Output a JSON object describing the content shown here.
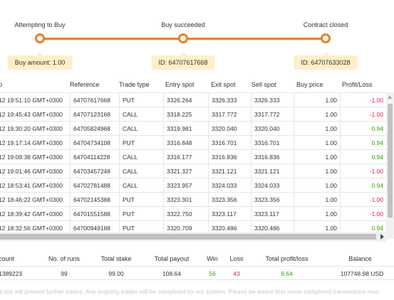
{
  "stepper": {
    "steps": [
      {
        "title": "Attempting to Buy",
        "bubble": "Buy amount: 1.00"
      },
      {
        "title": "Buy succeeded",
        "bubble": "ID: 64707617668"
      },
      {
        "title": "Contract closed",
        "bubble": "ID: 64707633028"
      }
    ],
    "accent_color": "#e98024",
    "bubble_color": "#fdefc8"
  },
  "transactions": {
    "headers": [
      "p",
      "Reference",
      "Trade type",
      "Entry spot",
      "Exit spot",
      "Sell spot",
      "Buy price",
      "Profit/Loss"
    ],
    "rows": [
      {
        "time": "12 19:51:10 GMT+0300",
        "ref": "64707617668",
        "type": "PUT",
        "entry": "3326.264",
        "exit": "3326.333",
        "sell": "3326.333",
        "buy": "1.00",
        "pl": "-1.00"
      },
      {
        "time": "12 19:45:43 GMT+0300",
        "ref": "64707123168",
        "type": "CALL",
        "entry": "3318.225",
        "exit": "3317.772",
        "sell": "3317.772",
        "buy": "1.00",
        "pl": "-1.00"
      },
      {
        "time": "12 19:30:20 GMT+0300",
        "ref": "64705824968",
        "type": "CALL",
        "entry": "3319.981",
        "exit": "3320.040",
        "sell": "3320.040",
        "buy": "1.00",
        "pl": "0.94"
      },
      {
        "time": "12 19:17:14 GMT+0300",
        "ref": "64704734108",
        "type": "PUT",
        "entry": "3316.848",
        "exit": "3316.701",
        "sell": "3316.701",
        "buy": "1.00",
        "pl": "0.94"
      },
      {
        "time": "12 19:09:38 GMT+0300",
        "ref": "64704114228",
        "type": "CALL",
        "entry": "3316.177",
        "exit": "3316.836",
        "sell": "3316.836",
        "buy": "1.00",
        "pl": "0.94"
      },
      {
        "time": "12 19:01:46 GMT+0300",
        "ref": "64703457248",
        "type": "CALL",
        "entry": "3321.327",
        "exit": "3321.121",
        "sell": "3321.121",
        "buy": "1.00",
        "pl": "-1.00"
      },
      {
        "time": "12 18:53:41 GMT+0300",
        "ref": "64702781488",
        "type": "CALL",
        "entry": "3323.957",
        "exit": "3324.033",
        "sell": "3324.033",
        "buy": "1.00",
        "pl": "0.94"
      },
      {
        "time": "12 18:46:22 GMT+0300",
        "ref": "64702145388",
        "type": "PUT",
        "entry": "3323.301",
        "exit": "3323.356",
        "sell": "3323.356",
        "buy": "1.00",
        "pl": "-1.00"
      },
      {
        "time": "12 18:39:42 GMT+0300",
        "ref": "64701551588",
        "type": "PUT",
        "entry": "3322.750",
        "exit": "3323.117",
        "sell": "3323.117",
        "buy": "1.00",
        "pl": "-1.00"
      },
      {
        "time": "12 18:32:56 GMT+0300",
        "ref": "64700949188",
        "type": "PUT",
        "entry": "3320.709",
        "exit": "3320.486",
        "sell": "3320.486",
        "buy": "1.00",
        "pl": "0.94"
      }
    ]
  },
  "summary": {
    "headers": [
      "count",
      "No. of runs",
      "Total stake",
      "Total payout",
      "Win",
      "Loss",
      "Total profit/loss",
      "Balance"
    ],
    "values": [
      "1389223",
      "99",
      "99.00",
      "108.64",
      "56",
      "43",
      "9.64",
      "107748.98 USD"
    ]
  },
  "footer": {
    "note": "e bot will prevent further trades. Any ongoing trades will be completed by our system. Please be aware that some completed transactions may"
  },
  "colors": {
    "loss": "#e31c4b",
    "profit": "#39a10d",
    "border": "#e5e5e5"
  }
}
